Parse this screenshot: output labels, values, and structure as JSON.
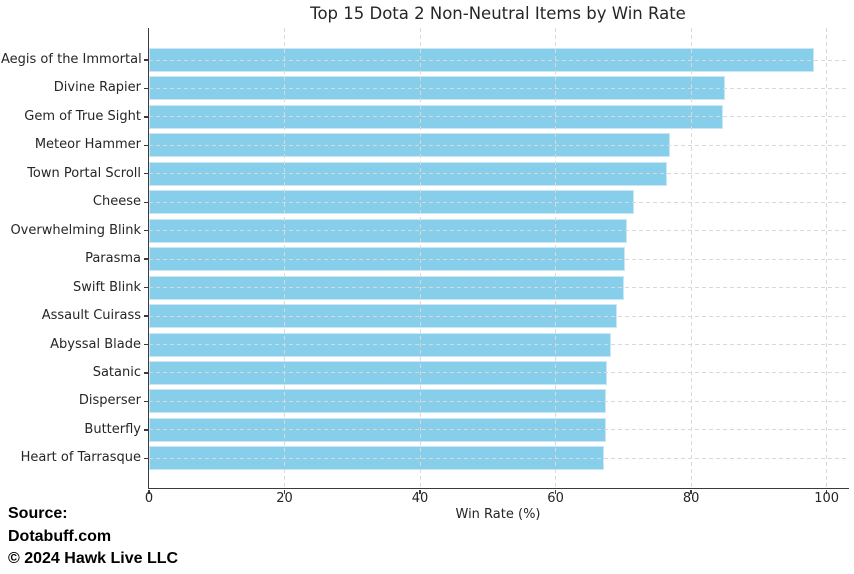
{
  "chart_data": {
    "type": "bar",
    "orientation": "horizontal",
    "title": "Top 15 Dota 2 Non-Neutral Items by Win Rate",
    "xlabel": "Win Rate (%)",
    "ylabel": "",
    "categories": [
      "Aegis of the Immortal",
      "Divine Rapier",
      "Gem of True Sight",
      "Meteor Hammer",
      "Town Portal Scroll",
      "Cheese",
      "Overwhelming Blink",
      "Parasma",
      "Swift Blink",
      "Assault Cuirass",
      "Abyssal Blade",
      "Satanic",
      "Disperser",
      "Butterfly",
      "Heart of Tarrasque"
    ],
    "values": [
      98.2,
      85.0,
      84.7,
      76.9,
      76.5,
      71.5,
      70.6,
      70.2,
      70.1,
      69.0,
      68.2,
      67.6,
      67.5,
      67.4,
      67.1
    ],
    "xlim": [
      0,
      103.3
    ],
    "xticks": [
      0,
      20,
      40,
      60,
      80,
      100
    ],
    "grid": true,
    "legend_position": "none",
    "bar_color": "#87CEEB",
    "grid_color": "#d8d8d8",
    "spine_color": "#3b3b3b"
  },
  "footer": {
    "source_label": "Source:",
    "source_name": "Dotabuff.com",
    "copyright": "© 2024 Hawk Live LLC"
  }
}
